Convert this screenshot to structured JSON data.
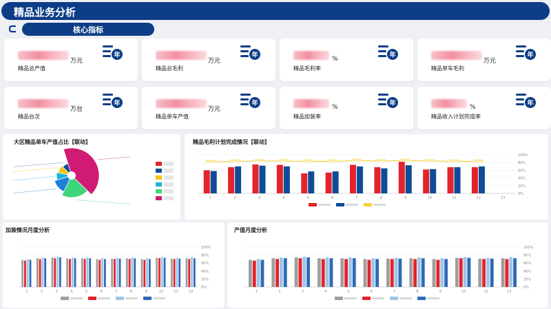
{
  "header": {
    "title": "精品业务分析"
  },
  "section": {
    "label": "核心指标"
  },
  "kpis": [
    {
      "label": "精品总产值",
      "unit": "万元"
    },
    {
      "label": "精品总毛利",
      "unit": "万元"
    },
    {
      "label": "精品毛利率",
      "unit": "%"
    },
    {
      "label": "精品单车毛利",
      "unit": "万元"
    },
    {
      "label": "精品台次",
      "unit": "万台"
    },
    {
      "label": "精品单车产值",
      "unit": "万元"
    },
    {
      "label": "精品加装率",
      "unit": "%"
    },
    {
      "label": "精品收入计划完成率",
      "unit": "%"
    }
  ],
  "icons": {
    "kpi": "year-stack-icon",
    "back": "refresh-icon"
  },
  "colors": {
    "primary": "#0d3d86",
    "red": "#e3232b",
    "blue": "#0f4c97",
    "yellow": "#f3d23c"
  },
  "panels": {
    "region_pie": {
      "title": "大区精品单车产值占比【联动】"
    },
    "profit_plan": {
      "title": "精品毛利计划完成情况【联动】"
    },
    "install_monthly": {
      "title": "加装情况月度分析"
    },
    "output_monthly": {
      "title": "产值月度分析"
    }
  },
  "chart_data": [
    {
      "type": "pie",
      "title": "大区精品单车产值占比【联动】",
      "slices": [
        {
          "color": "#d11a74",
          "value": 42
        },
        {
          "color": "#3dd67a",
          "value": 20
        },
        {
          "color": "#1e7fd9",
          "value": 13
        },
        {
          "color": "#16b5d8",
          "value": 8
        },
        {
          "color": "#f2c40f",
          "value": 9
        },
        {
          "color": "#0f4c97",
          "value": 8
        }
      ]
    },
    {
      "type": "bar",
      "title": "精品毛利计划完成情况【联动】",
      "categories": [
        "1",
        "2",
        "3",
        "4",
        "5",
        "6",
        "7",
        "8",
        "9",
        "10",
        "11",
        "12",
        "13"
      ],
      "series": [
        {
          "name": "red",
          "color": "#e3232b",
          "values": [
            60,
            68,
            75,
            74,
            52,
            54,
            74,
            68,
            82,
            62,
            68,
            68,
            0
          ]
        },
        {
          "name": "blue",
          "color": "#0f4c97",
          "values": [
            58,
            70,
            72,
            70,
            57,
            57,
            70,
            65,
            73,
            63,
            68,
            70,
            0
          ]
        },
        {
          "name": "line",
          "color": "#f3d23c",
          "values": [
            82,
            83,
            84,
            84,
            83,
            83,
            85,
            84,
            85,
            84,
            83,
            83,
            0
          ]
        }
      ],
      "y_right_ticks": [
        "100%",
        "80%",
        "60%",
        "40%",
        "20%",
        "0%"
      ],
      "ylim": [
        0,
        100
      ]
    },
    {
      "type": "bar",
      "title": "加装情况月度分析",
      "categories": [
        "1",
        "2",
        "3",
        "4",
        "5",
        "6",
        "7",
        "8",
        "9",
        "10",
        "11",
        "12"
      ],
      "series": [
        {
          "name": "grey",
          "color": "#9e9e9e",
          "values": [
            68,
            72,
            74,
            72,
            72,
            70,
            71,
            72,
            70,
            73,
            71,
            72
          ]
        },
        {
          "name": "red",
          "color": "#e3232b",
          "values": [
            66,
            70,
            72,
            70,
            70,
            68,
            70,
            70,
            68,
            72,
            70,
            70
          ]
        },
        {
          "name": "lightblue",
          "color": "#9fc4e8",
          "values": [
            70,
            74,
            76,
            74,
            74,
            72,
            73,
            74,
            72,
            75,
            73,
            75
          ]
        },
        {
          "name": "blue",
          "color": "#2e6ab5",
          "values": [
            68,
            72,
            74,
            72,
            72,
            70,
            71,
            72,
            70,
            73,
            71,
            72
          ]
        }
      ],
      "y_right_ticks": [
        "100%",
        "80%",
        "60%",
        "40%",
        "20%",
        "0%"
      ],
      "ylim": [
        0,
        100
      ]
    },
    {
      "type": "bar",
      "title": "产值月度分析",
      "categories": [
        "1",
        "2",
        "3",
        "4",
        "5",
        "6",
        "7",
        "8",
        "9",
        "10",
        "11",
        "12"
      ],
      "series": [
        {
          "name": "grey",
          "color": "#9e9e9e",
          "values": [
            68,
            72,
            74,
            72,
            72,
            70,
            71,
            72,
            70,
            73,
            71,
            72
          ]
        },
        {
          "name": "red",
          "color": "#e3232b",
          "values": [
            66,
            70,
            72,
            70,
            70,
            68,
            70,
            70,
            68,
            72,
            70,
            70
          ]
        },
        {
          "name": "lightblue",
          "color": "#9fc4e8",
          "values": [
            70,
            74,
            76,
            74,
            74,
            72,
            73,
            74,
            72,
            75,
            73,
            75
          ]
        },
        {
          "name": "blue",
          "color": "#2e6ab5",
          "values": [
            68,
            72,
            74,
            72,
            72,
            70,
            71,
            72,
            70,
            73,
            71,
            72
          ]
        }
      ],
      "y_right_ticks": [
        "100%",
        "80%",
        "60%",
        "40%",
        "20%",
        "0%"
      ],
      "ylim": [
        0,
        100
      ]
    }
  ]
}
